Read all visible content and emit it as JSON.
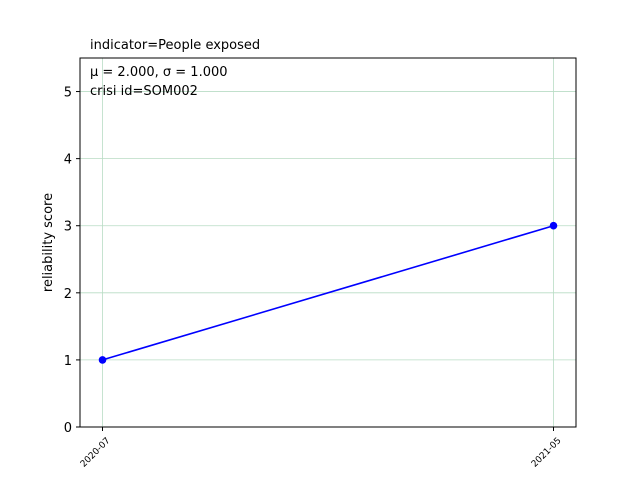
{
  "chart_data": {
    "type": "line",
    "title": "indicator=People exposed",
    "annotation_line1": "μ = 2.000,  σ = 1.000",
    "annotation_line2": "crisi id=SOM002",
    "ylabel": "reliability score",
    "xlabel": "",
    "categories": [
      "2020-07",
      "2021-05"
    ],
    "x": [
      "2020-07",
      "2021-05"
    ],
    "series": [
      {
        "values": [
          1,
          3
        ],
        "color": "#0000ff",
        "marker": "circle"
      }
    ],
    "yticks": [
      0,
      1,
      2,
      3,
      4,
      5
    ],
    "ylim": [
      0,
      5.5
    ],
    "grid": true,
    "grid_color": "#b8dcc4",
    "legend": "none"
  }
}
